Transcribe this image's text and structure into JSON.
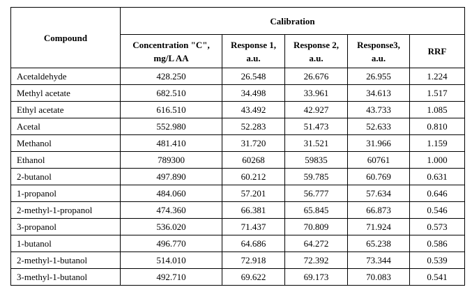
{
  "table": {
    "header": {
      "compound": "Compound",
      "group": "Calibration",
      "columns": [
        "Concentration \"C\", mg/L AA",
        "Response 1, a.u.",
        "Response 2, a.u.",
        "Response3, a.u.",
        "RRF"
      ]
    },
    "rows": [
      [
        "Acetaldehyde",
        "428.250",
        "26.548",
        "26.676",
        "26.955",
        "1.224"
      ],
      [
        "Methyl acetate",
        "682.510",
        "34.498",
        "33.961",
        "34.613",
        "1.517"
      ],
      [
        "Ethyl acetate",
        "616.510",
        "43.492",
        "42.927",
        "43.733",
        "1.085"
      ],
      [
        "Acetal",
        "552.980",
        "52.283",
        "51.473",
        "52.633",
        "0.810"
      ],
      [
        "Methanol",
        "481.410",
        "31.720",
        "31.521",
        "31.966",
        "1.159"
      ],
      [
        "Ethanol",
        "789300",
        "60268",
        "59835",
        "60761",
        "1.000"
      ],
      [
        "2-butanol",
        "497.890",
        "60.212",
        "59.785",
        "60.769",
        "0.631"
      ],
      [
        "1-propanol",
        "484.060",
        "57.201",
        "56.777",
        "57.634",
        "0.646"
      ],
      [
        "2-methyl-1-propanol",
        "474.360",
        "66.381",
        "65.845",
        "66.873",
        "0.546"
      ],
      [
        "3-propanol",
        "536.020",
        "71.437",
        "70.809",
        "71.924",
        "0.573"
      ],
      [
        "1-butanol",
        "496.770",
        "64.686",
        "64.272",
        "65.238",
        "0.586"
      ],
      [
        "2-methyl-1-butanol",
        "514.010",
        "72.918",
        "72.392",
        "73.344",
        "0.539"
      ],
      [
        "3-methyl-1-butanol",
        "492.710",
        "69.622",
        "69.173",
        "70.083",
        "0.541"
      ]
    ]
  }
}
